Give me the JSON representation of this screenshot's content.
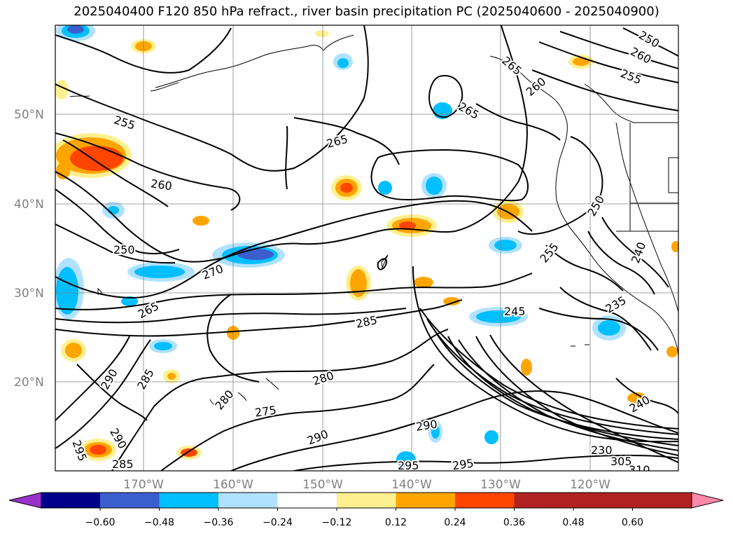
{
  "title": "2025040400 F120 850 hPa refract., river basin precipitation PC (2025040600 - 2025040900)",
  "axes": {
    "lat_ticks": [
      "50°N",
      "40°N",
      "30°N",
      "20°N"
    ],
    "lon_ticks": [
      "170°W",
      "160°W",
      "150°W",
      "140°W",
      "130°W",
      "120°W"
    ]
  },
  "colorbar": {
    "colors": [
      "#9932cc",
      "#00008b",
      "#3a5fcd",
      "#00bfff",
      "#b0e2ff",
      "#ffffff",
      "#fff08f",
      "#ffa500",
      "#ff4500",
      "#b22222",
      "#ff88aa"
    ],
    "tick_labels": [
      "−0.60",
      "−0.48",
      "−0.36",
      "−0.24",
      "−0.12",
      "0.12",
      "0.24",
      "0.36",
      "0.48",
      "0.60"
    ]
  },
  "contour_labels": [
    "255",
    "265",
    "260",
    "250",
    "270",
    "265",
    "285",
    "290",
    "285",
    "280",
    "275",
    "280",
    "290",
    "295",
    "290",
    "285",
    "290",
    "295",
    "295",
    "265",
    "260",
    "265",
    "260",
    "255",
    "250",
    "255",
    "240",
    "245",
    "235",
    "240",
    "230",
    "305",
    "310",
    "250"
  ]
}
